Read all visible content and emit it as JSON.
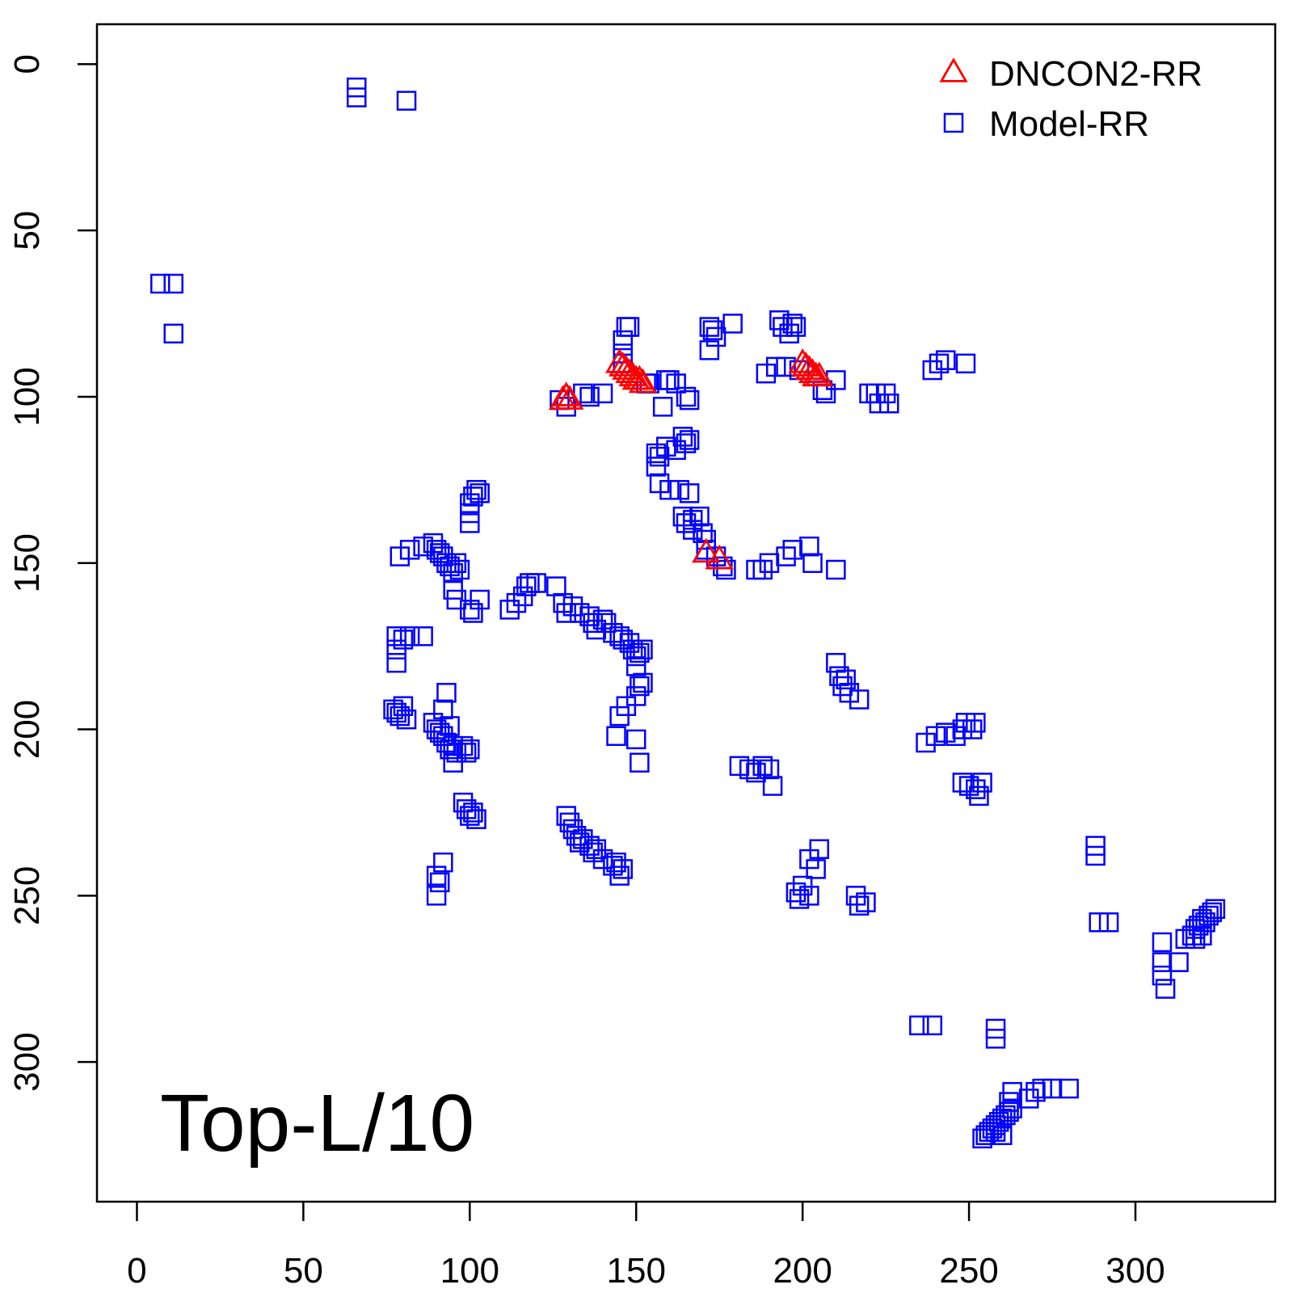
{
  "chart_data": {
    "type": "scatter",
    "title": "",
    "xlabel": "",
    "ylabel": "",
    "xlim": [
      -12,
      342
    ],
    "ylim": [
      342,
      -12
    ],
    "y_axis_inverted": true,
    "grid": false,
    "legend_position": "top-right",
    "annotation": "Top-L/10",
    "x_ticks": [
      "0",
      "50",
      "100",
      "150",
      "200",
      "250",
      "300"
    ],
    "y_ticks": [
      "0",
      "50",
      "100",
      "150",
      "200",
      "250",
      "300"
    ],
    "colors": {
      "DNCON2-RR": "#ff0000",
      "Model-RR": "#0000ff",
      "axes": "#000000"
    },
    "series": [
      {
        "name": "DNCON2-RR",
        "marker": "triangle",
        "color": "#ff0000",
        "points": [
          [
            128,
            101
          ],
          [
            129,
            100
          ],
          [
            130,
            101
          ],
          [
            145,
            90
          ],
          [
            146,
            91
          ],
          [
            147,
            92
          ],
          [
            148,
            93
          ],
          [
            149,
            94
          ],
          [
            150,
            95
          ],
          [
            151,
            95
          ],
          [
            152,
            96
          ],
          [
            200,
            90
          ],
          [
            201,
            91
          ],
          [
            202,
            92
          ],
          [
            203,
            93
          ],
          [
            204,
            94
          ],
          [
            205,
            94
          ],
          [
            171,
            147
          ],
          [
            175,
            149
          ]
        ]
      },
      {
        "name": "Model-RR",
        "marker": "square",
        "color": "#0000ff",
        "points": [
          [
            66,
            7
          ],
          [
            66,
            10
          ],
          [
            81,
            11
          ],
          [
            7,
            66
          ],
          [
            11,
            66
          ],
          [
            11,
            81
          ],
          [
            147,
            79
          ],
          [
            148,
            79
          ],
          [
            146,
            83
          ],
          [
            146,
            87
          ],
          [
            146,
            90
          ],
          [
            153,
            96
          ],
          [
            154,
            96
          ],
          [
            159,
            95
          ],
          [
            160,
            95
          ],
          [
            162,
            96
          ],
          [
            158,
            103
          ],
          [
            165,
            100
          ],
          [
            166,
            101
          ],
          [
            127,
            101
          ],
          [
            129,
            103
          ],
          [
            134,
            99
          ],
          [
            136,
            100
          ],
          [
            140,
            99
          ],
          [
            172,
            79
          ],
          [
            173,
            80
          ],
          [
            174,
            82
          ],
          [
            172,
            86
          ],
          [
            179,
            78
          ],
          [
            193,
            77
          ],
          [
            194,
            79
          ],
          [
            197,
            78
          ],
          [
            198,
            79
          ],
          [
            196,
            81
          ],
          [
            189,
            93
          ],
          [
            192,
            91
          ],
          [
            195,
            91
          ],
          [
            199,
            92
          ],
          [
            206,
            98
          ],
          [
            207,
            99
          ],
          [
            210,
            95
          ],
          [
            220,
            99
          ],
          [
            222,
            99
          ],
          [
            223,
            102
          ],
          [
            225,
            99
          ],
          [
            226,
            102
          ],
          [
            239,
            92
          ],
          [
            241,
            90
          ],
          [
            243,
            89
          ],
          [
            249,
            90
          ],
          [
            156,
            117
          ],
          [
            157,
            118
          ],
          [
            156,
            121
          ],
          [
            159,
            115
          ],
          [
            162,
            116
          ],
          [
            164,
            112
          ],
          [
            165,
            114
          ],
          [
            166,
            113
          ],
          [
            157,
            126
          ],
          [
            160,
            128
          ],
          [
            163,
            128
          ],
          [
            166,
            129
          ],
          [
            164,
            136
          ],
          [
            165,
            138
          ],
          [
            167,
            137
          ],
          [
            167,
            140
          ],
          [
            169,
            136
          ],
          [
            170,
            141
          ],
          [
            171,
            143
          ],
          [
            171,
            146
          ],
          [
            174,
            148
          ],
          [
            176,
            151
          ],
          [
            177,
            152
          ],
          [
            186,
            152
          ],
          [
            188,
            152
          ],
          [
            190,
            150
          ],
          [
            195,
            148
          ],
          [
            197,
            146
          ],
          [
            202,
            145
          ],
          [
            203,
            150
          ],
          [
            210,
            152
          ],
          [
            101,
            130
          ],
          [
            100,
            132
          ],
          [
            102,
            128
          ],
          [
            103,
            129
          ],
          [
            100,
            135
          ],
          [
            100,
            138
          ],
          [
            79,
            148
          ],
          [
            82,
            146
          ],
          [
            86,
            145
          ],
          [
            89,
            144
          ],
          [
            90,
            146
          ],
          [
            91,
            147
          ],
          [
            92,
            148
          ],
          [
            93,
            150
          ],
          [
            94,
            151
          ],
          [
            95,
            153
          ],
          [
            96,
            150
          ],
          [
            97,
            152
          ],
          [
            95,
            158
          ],
          [
            96,
            161
          ],
          [
            100,
            164
          ],
          [
            101,
            165
          ],
          [
            103,
            161
          ],
          [
            112,
            164
          ],
          [
            114,
            162
          ],
          [
            116,
            160
          ],
          [
            117,
            157
          ],
          [
            118,
            156
          ],
          [
            120,
            156
          ],
          [
            126,
            157
          ],
          [
            128,
            162
          ],
          [
            129,
            165
          ],
          [
            131,
            163
          ],
          [
            133,
            165
          ],
          [
            136,
            166
          ],
          [
            137,
            168
          ],
          [
            138,
            170
          ],
          [
            140,
            167
          ],
          [
            141,
            168
          ],
          [
            143,
            171
          ],
          [
            145,
            172
          ],
          [
            146,
            173
          ],
          [
            148,
            174
          ],
          [
            149,
            176
          ],
          [
            150,
            178
          ],
          [
            151,
            177
          ],
          [
            152,
            176
          ],
          [
            150,
            181
          ],
          [
            151,
            187
          ],
          [
            152,
            186
          ],
          [
            150,
            190
          ],
          [
            147,
            193
          ],
          [
            145,
            196
          ],
          [
            144,
            202
          ],
          [
            150,
            203
          ],
          [
            151,
            210
          ],
          [
            78,
            172
          ],
          [
            78,
            176
          ],
          [
            78,
            180
          ],
          [
            80,
            173
          ],
          [
            82,
            172
          ],
          [
            86,
            172
          ],
          [
            77,
            194
          ],
          [
            78,
            195
          ],
          [
            79,
            196
          ],
          [
            81,
            197
          ],
          [
            80,
            193
          ],
          [
            89,
            198
          ],
          [
            90,
            200
          ],
          [
            91,
            201
          ],
          [
            92,
            202
          ],
          [
            93,
            204
          ],
          [
            94,
            206
          ],
          [
            95,
            205
          ],
          [
            96,
            207
          ],
          [
            98,
            205
          ],
          [
            99,
            207
          ],
          [
            100,
            206
          ],
          [
            93,
            189
          ],
          [
            92,
            194
          ],
          [
            94,
            199
          ],
          [
            95,
            210
          ],
          [
            98,
            222
          ],
          [
            99,
            224
          ],
          [
            100,
            226
          ],
          [
            101,
            225
          ],
          [
            102,
            227
          ],
          [
            90,
            244
          ],
          [
            91,
            246
          ],
          [
            92,
            240
          ],
          [
            90,
            250
          ],
          [
            129,
            226
          ],
          [
            130,
            228
          ],
          [
            131,
            230
          ],
          [
            132,
            232
          ],
          [
            133,
            234
          ],
          [
            134,
            233
          ],
          [
            136,
            235
          ],
          [
            137,
            237
          ],
          [
            138,
            236
          ],
          [
            140,
            239
          ],
          [
            143,
            241
          ],
          [
            144,
            240
          ],
          [
            145,
            244
          ],
          [
            146,
            242
          ],
          [
            181,
            211
          ],
          [
            184,
            212
          ],
          [
            186,
            213
          ],
          [
            188,
            211
          ],
          [
            190,
            212
          ],
          [
            191,
            217
          ],
          [
            210,
            180
          ],
          [
            211,
            184
          ],
          [
            212,
            187
          ],
          [
            213,
            185
          ],
          [
            214,
            189
          ],
          [
            217,
            191
          ],
          [
            237,
            204
          ],
          [
            240,
            202
          ],
          [
            243,
            201
          ],
          [
            246,
            202
          ],
          [
            248,
            200
          ],
          [
            249,
            198
          ],
          [
            251,
            200
          ],
          [
            252,
            198
          ],
          [
            248,
            216
          ],
          [
            250,
            217
          ],
          [
            252,
            218
          ],
          [
            253,
            220
          ],
          [
            254,
            216
          ],
          [
            198,
            249
          ],
          [
            199,
            251
          ],
          [
            200,
            247
          ],
          [
            202,
            250
          ],
          [
            204,
            242
          ],
          [
            205,
            236
          ],
          [
            202,
            239
          ],
          [
            216,
            250
          ],
          [
            217,
            253
          ],
          [
            219,
            252
          ],
          [
            288,
            235
          ],
          [
            288,
            238
          ],
          [
            289,
            258
          ],
          [
            292,
            258
          ],
          [
            308,
            264
          ],
          [
            308,
            270
          ],
          [
            308,
            274
          ],
          [
            309,
            278
          ],
          [
            313,
            270
          ],
          [
            315,
            263
          ],
          [
            317,
            262
          ],
          [
            318,
            260
          ],
          [
            319,
            259
          ],
          [
            320,
            257
          ],
          [
            321,
            258
          ],
          [
            322,
            256
          ],
          [
            323,
            255
          ],
          [
            320,
            262
          ],
          [
            318,
            263
          ],
          [
            324,
            254
          ],
          [
            235,
            289
          ],
          [
            239,
            289
          ],
          [
            258,
            290
          ],
          [
            258,
            293
          ],
          [
            254,
            323
          ],
          [
            255,
            322
          ],
          [
            256,
            321
          ],
          [
            257,
            320
          ],
          [
            258,
            319
          ],
          [
            259,
            318
          ],
          [
            260,
            317
          ],
          [
            261,
            316
          ],
          [
            262,
            315
          ],
          [
            263,
            314
          ],
          [
            262,
            312
          ],
          [
            263,
            309
          ],
          [
            268,
            311
          ],
          [
            270,
            309
          ],
          [
            272,
            308
          ],
          [
            275,
            308
          ],
          [
            280,
            308
          ],
          [
            260,
            322
          ],
          [
            258,
            321
          ]
        ]
      }
    ]
  }
}
